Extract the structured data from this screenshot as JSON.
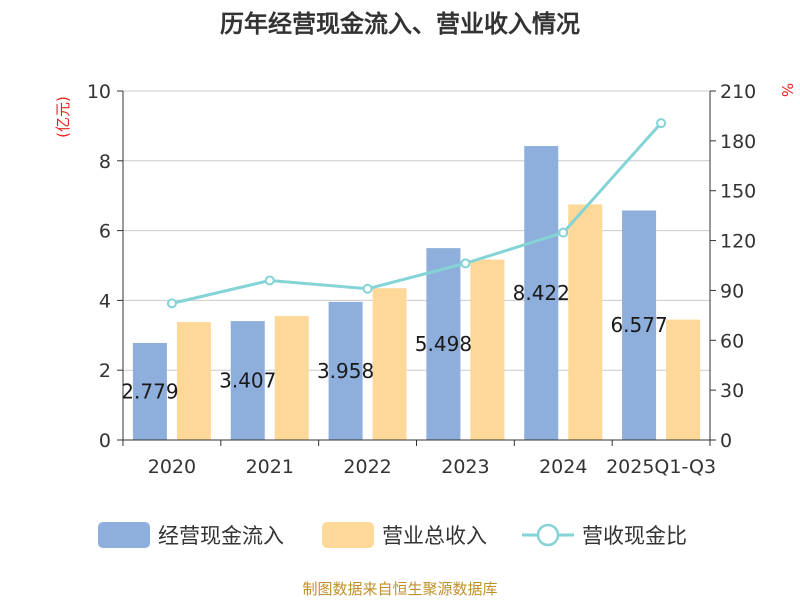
{
  "chart_data": {
    "type": "bar",
    "title": "历年经营现金流入、营业收入情况",
    "categories": [
      "2020",
      "2021",
      "2022",
      "2023",
      "2024",
      "2025Q1-Q3"
    ],
    "series": [
      {
        "name": "经营现金流入",
        "type": "bar",
        "axis": "left",
        "color": "#8eaedb",
        "values": [
          2.779,
          3.407,
          3.958,
          5.498,
          8.422,
          6.577
        ]
      },
      {
        "name": "营业总收入",
        "type": "bar",
        "axis": "left",
        "color": "#fdd899",
        "values": [
          3.38,
          3.55,
          4.35,
          5.17,
          6.75,
          3.45
        ]
      },
      {
        "name": "营收现金比",
        "type": "line",
        "axis": "right",
        "color": "#84d3d6",
        "values": [
          82.2,
          96.0,
          91.0,
          106.3,
          124.8,
          190.7
        ]
      }
    ],
    "data_labels": [
      "2.779",
      "3.407",
      "3.958",
      "5.498",
      "8.422",
      "6.577"
    ],
    "left_axis": {
      "unit": "(亿元)",
      "ylim": [
        0,
        10
      ],
      "ticks": [
        "0",
        "2",
        "4",
        "6",
        "8",
        "10"
      ]
    },
    "right_axis": {
      "unit": "%",
      "ylim": [
        0,
        210
      ],
      "ticks": [
        "0",
        "30",
        "60",
        "90",
        "120",
        "150",
        "180",
        "210"
      ]
    },
    "grid": true,
    "legend": "bottom"
  },
  "source": "制图数据来自恒生聚源数据库"
}
